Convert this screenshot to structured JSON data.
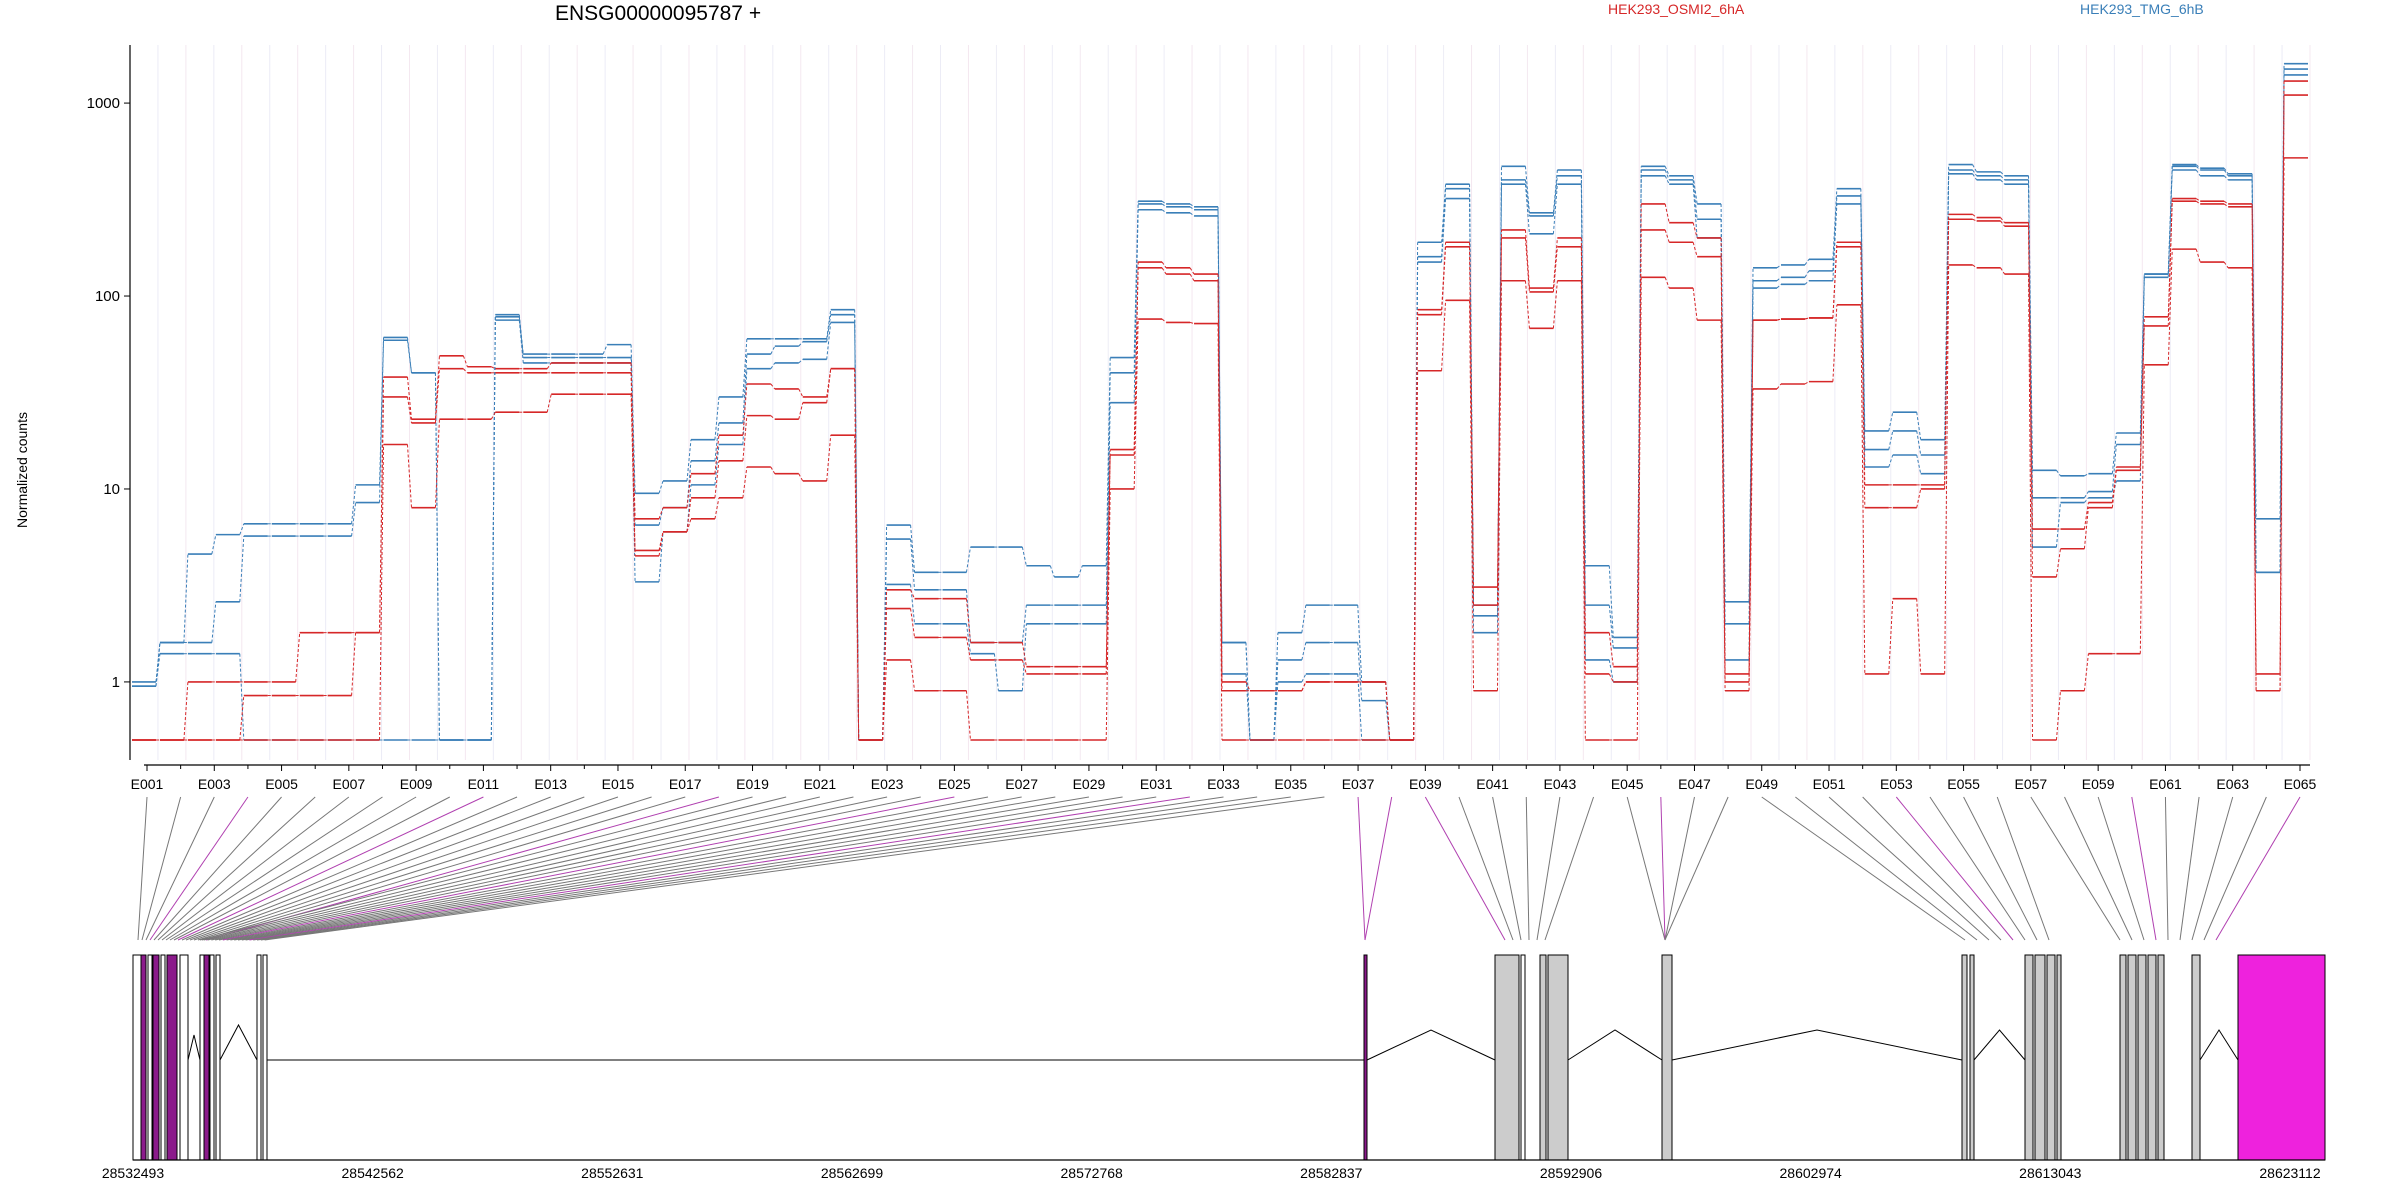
{
  "chart_data": {
    "type": "line",
    "title": "ENSG00000095787 +",
    "ylabel": "Normalized counts",
    "yscale": "log",
    "ylim": [
      0.5,
      2000
    ],
    "yticks": [
      1,
      10,
      100,
      1000
    ],
    "legend": [
      {
        "name": "HEK293_OSMI2_6hA",
        "color": "#d62728"
      },
      {
        "name": "HEK293_TMG_6hB",
        "color": "#3a7fb8"
      }
    ],
    "exon_labels": [
      "E001",
      "E003",
      "E005",
      "E007",
      "E009",
      "E011",
      "E013",
      "E015",
      "E017",
      "E019",
      "E021",
      "E023",
      "E025",
      "E027",
      "E029",
      "E031",
      "E033",
      "E035",
      "E037",
      "E039",
      "E041",
      "E043",
      "E045",
      "E047",
      "E049",
      "E051",
      "E053",
      "E055",
      "E057",
      "E059",
      "E061",
      "E063",
      "E065"
    ],
    "series": [
      {
        "name": "HEK293_TMG_6hB",
        "group": "TMG",
        "values": [
          1,
          1.6,
          4.6,
          5.8,
          6.6,
          6.6,
          6.6,
          6.6,
          10.5,
          61,
          40,
          0.5,
          0.5,
          80,
          50,
          50,
          50,
          56,
          9.5,
          11,
          18,
          30,
          60,
          60,
          60,
          85,
          0.5,
          6.5,
          3.7,
          3.7,
          5,
          5,
          4,
          3.5,
          4,
          48,
          310,
          300,
          290,
          1.6,
          0.5,
          1.8,
          2.5,
          2.5,
          1,
          0.5,
          190,
          380,
          2.5,
          470,
          270,
          450,
          4,
          1.7,
          470,
          420,
          300,
          2.6,
          140,
          145,
          155,
          360,
          20,
          25,
          18,
          480,
          440,
          420,
          12.5,
          11.7,
          12,
          19.5,
          130,
          480,
          460,
          430,
          7,
          1600
        ]
      },
      {
        "name": "HEK293_TMG_6hB",
        "group": "TMG",
        "values": [
          0.95,
          1.6,
          1.6,
          2.6,
          5.7,
          5.7,
          5.7,
          5.7,
          8.5,
          59,
          40,
          0.5,
          0.5,
          78,
          48,
          48,
          48,
          48,
          6.5,
          8,
          14,
          22,
          50,
          55,
          58,
          80,
          0.5,
          5.5,
          3,
          3,
          1.6,
          1.6,
          2.5,
          2.5,
          2.5,
          40,
          300,
          290,
          280,
          1.6,
          0.5,
          1.3,
          1.6,
          1.6,
          0.8,
          0.5,
          160,
          360,
          2.2,
          400,
          260,
          420,
          2.5,
          1.5,
          450,
          400,
          250,
          2,
          120,
          125,
          135,
          330,
          16,
          20,
          15,
          450,
          420,
          400,
          9,
          9,
          9.7,
          17,
          130,
          470,
          450,
          420,
          3.7,
          1500
        ]
      },
      {
        "name": "HEK293_TMG_6hB",
        "group": "TMG",
        "values": [
          0.95,
          1.4,
          1.4,
          1.4,
          0.5,
          0.5,
          0.5,
          0.5,
          0.5,
          0.5,
          0.5,
          0.5,
          0.5,
          75,
          45,
          45,
          45,
          45,
          3.3,
          6,
          10.5,
          17,
          42,
          45,
          47,
          73,
          0.5,
          3.2,
          2,
          2,
          1.4,
          0.9,
          2,
          2,
          2,
          28,
          280,
          270,
          260,
          1.1,
          0.5,
          1,
          1.1,
          1.1,
          0.5,
          0.5,
          150,
          320,
          1.8,
          380,
          210,
          380,
          1.3,
          1,
          420,
          380,
          200,
          1.3,
          110,
          115,
          120,
          300,
          13,
          15,
          12,
          430,
          400,
          380,
          5,
          8.5,
          9,
          11,
          125,
          450,
          420,
          400,
          3.7,
          1400
        ]
      },
      {
        "name": "HEK293_OSMI2_6hA",
        "group": "OSMI2",
        "values": [
          0.5,
          0.5,
          1,
          1,
          1,
          1,
          1.8,
          1.8,
          1.8,
          38,
          23,
          49,
          43,
          42,
          42,
          45,
          45,
          45,
          7,
          8,
          12,
          19,
          35,
          33,
          30,
          42,
          0.5,
          3,
          2.7,
          2.7,
          1.6,
          1.6,
          1.2,
          1.2,
          1.2,
          16,
          150,
          140,
          130,
          1,
          0.9,
          0.9,
          1,
          1,
          1,
          0.5,
          85,
          190,
          3.1,
          220,
          110,
          200,
          1.8,
          1.2,
          300,
          240,
          200,
          1.1,
          75,
          76,
          77,
          190,
          10.5,
          10.5,
          10.5,
          265,
          255,
          240,
          6.2,
          6.2,
          8.5,
          13,
          78,
          320,
          310,
          300,
          1.1,
          1300
        ]
      },
      {
        "name": "HEK293_OSMI2_6hA",
        "group": "OSMI2",
        "values": [
          0.5,
          0.5,
          0.5,
          0.5,
          0.85,
          0.85,
          0.85,
          0.85,
          1.8,
          30,
          22,
          42,
          40,
          40,
          40,
          40,
          40,
          40,
          4.8,
          6,
          9,
          14,
          24,
          23,
          28,
          42,
          0.5,
          2.4,
          1.7,
          1.7,
          1.3,
          1.3,
          1.1,
          1.1,
          1.1,
          15,
          140,
          130,
          120,
          0.9,
          0.9,
          0.9,
          1,
          1,
          1,
          0.5,
          80,
          180,
          2.5,
          200,
          105,
          180,
          1.1,
          1,
          220,
          190,
          160,
          1,
          75,
          76,
          77,
          180,
          8,
          8,
          10,
          250,
          245,
          230,
          3.5,
          4.9,
          8,
          12.5,
          70,
          310,
          300,
          290,
          0.9,
          1100
        ]
      },
      {
        "name": "HEK293_OSMI2_6hA",
        "group": "OSMI2",
        "values": [
          0.5,
          0.5,
          0.5,
          0.5,
          0.5,
          0.5,
          0.5,
          0.5,
          0.5,
          17,
          8,
          23,
          23,
          25,
          25,
          31,
          31,
          31,
          4.5,
          6,
          7,
          9,
          13,
          12,
          11,
          19,
          0.5,
          1.3,
          0.9,
          0.9,
          0.5,
          0.5,
          0.5,
          0.5,
          0.5,
          10,
          76,
          73,
          72,
          0.5,
          0.5,
          0.5,
          0.5,
          0.5,
          0.5,
          0.5,
          41,
          95,
          0.9,
          120,
          68,
          120,
          0.5,
          0.5,
          125,
          110,
          75,
          0.9,
          33,
          35,
          36,
          90,
          1.1,
          2.7,
          1.1,
          145,
          140,
          130,
          0.5,
          0.9,
          1.4,
          1.4,
          44,
          175,
          150,
          140,
          0.9,
          520
        ]
      }
    ],
    "gene_model": {
      "start_label": "28532493",
      "coordinate_ticks": [
        "28532493",
        "28542562",
        "28552631",
        "28562699",
        "28572768",
        "28582837",
        "28592906",
        "28602974",
        "28613043",
        "28623112"
      ]
    }
  }
}
